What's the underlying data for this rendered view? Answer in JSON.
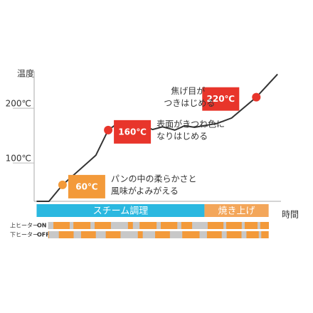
{
  "chart_data": {
    "type": "line",
    "y_label": "温度",
    "x_label": "時間",
    "xlim": [
      0,
      100
    ],
    "ylim": [
      30,
      265
    ],
    "yticks": [
      {
        "value": 100,
        "label": "100℃"
      },
      {
        "value": 200,
        "label": "200℃"
      }
    ],
    "x": [
      1,
      6,
      11.5,
      25,
      30,
      33.4,
      35,
      38,
      41,
      44,
      48,
      52,
      57,
      61,
      65,
      70,
      74,
      80,
      90,
      98.6
    ],
    "series": [
      {
        "color": "#333333",
        "values": [
          30,
          30,
          60,
          114,
          160,
          171,
          168,
          173,
          164,
          169,
          161,
          166,
          160,
          168,
          165,
          169,
          172,
          182,
          220,
          262
        ],
        "value_labels": [
          null,
          null,
          "60℃",
          null,
          "160℃",
          null,
          null,
          null,
          null,
          null,
          null,
          null,
          null,
          null,
          null,
          null,
          null,
          null,
          "220℃",
          null
        ],
        "marker_colors": [
          null,
          null,
          "#f39a3a",
          null,
          "#e8352b",
          null,
          null,
          null,
          null,
          null,
          null,
          null,
          null,
          null,
          null,
          null,
          null,
          null,
          "#e8352b",
          null
        ]
      }
    ],
    "annotations": [
      {
        "index": 2,
        "lines": [
          "パンの中の柔らかさと",
          "風味がよみがえる"
        ]
      },
      {
        "index": 4,
        "lines": [
          "表面がきつね色に",
          "なりはじめる"
        ]
      },
      {
        "index": 18,
        "lines": [
          "焦げ目が",
          "つきはじめる"
        ]
      }
    ],
    "phases": [
      {
        "name": "スチーム調理",
        "span": [
          1,
          69
        ],
        "color": "#2bb8e0"
      },
      {
        "name": "焼き上げ",
        "span": [
          69,
          95
        ],
        "color": "#f3a65a"
      }
    ],
    "heaters": [
      {
        "name": "上ヒーター",
        "state": "ON",
        "span": [
          1,
          95
        ],
        "on": [
          [
            7.8,
            14.4
          ],
          [
            15.9,
            22.8
          ],
          [
            24.5,
            31.1
          ],
          [
            38,
            40
          ],
          [
            42.7,
            49.6
          ],
          [
            51.3,
            58
          ],
          [
            59.6,
            64
          ],
          [
            70.3,
            76.7
          ],
          [
            77.8,
            84.1
          ],
          [
            85.3,
            90.5
          ],
          [
            91.6,
            95.1
          ]
        ]
      },
      {
        "name": "下ヒーター",
        "state": "OFF",
        "span": [
          1,
          95
        ],
        "on": [
          [
            1,
            6
          ],
          [
            10,
            16
          ],
          [
            19,
            25
          ],
          [
            29,
            35
          ],
          [
            42,
            44
          ],
          [
            49,
            55
          ],
          [
            60,
            67
          ],
          [
            70,
            76
          ],
          [
            78,
            84
          ],
          [
            86,
            91
          ],
          [
            92,
            95
          ]
        ]
      }
    ],
    "on_color": "#f39a3a",
    "off_color": "#c8c8c8"
  }
}
